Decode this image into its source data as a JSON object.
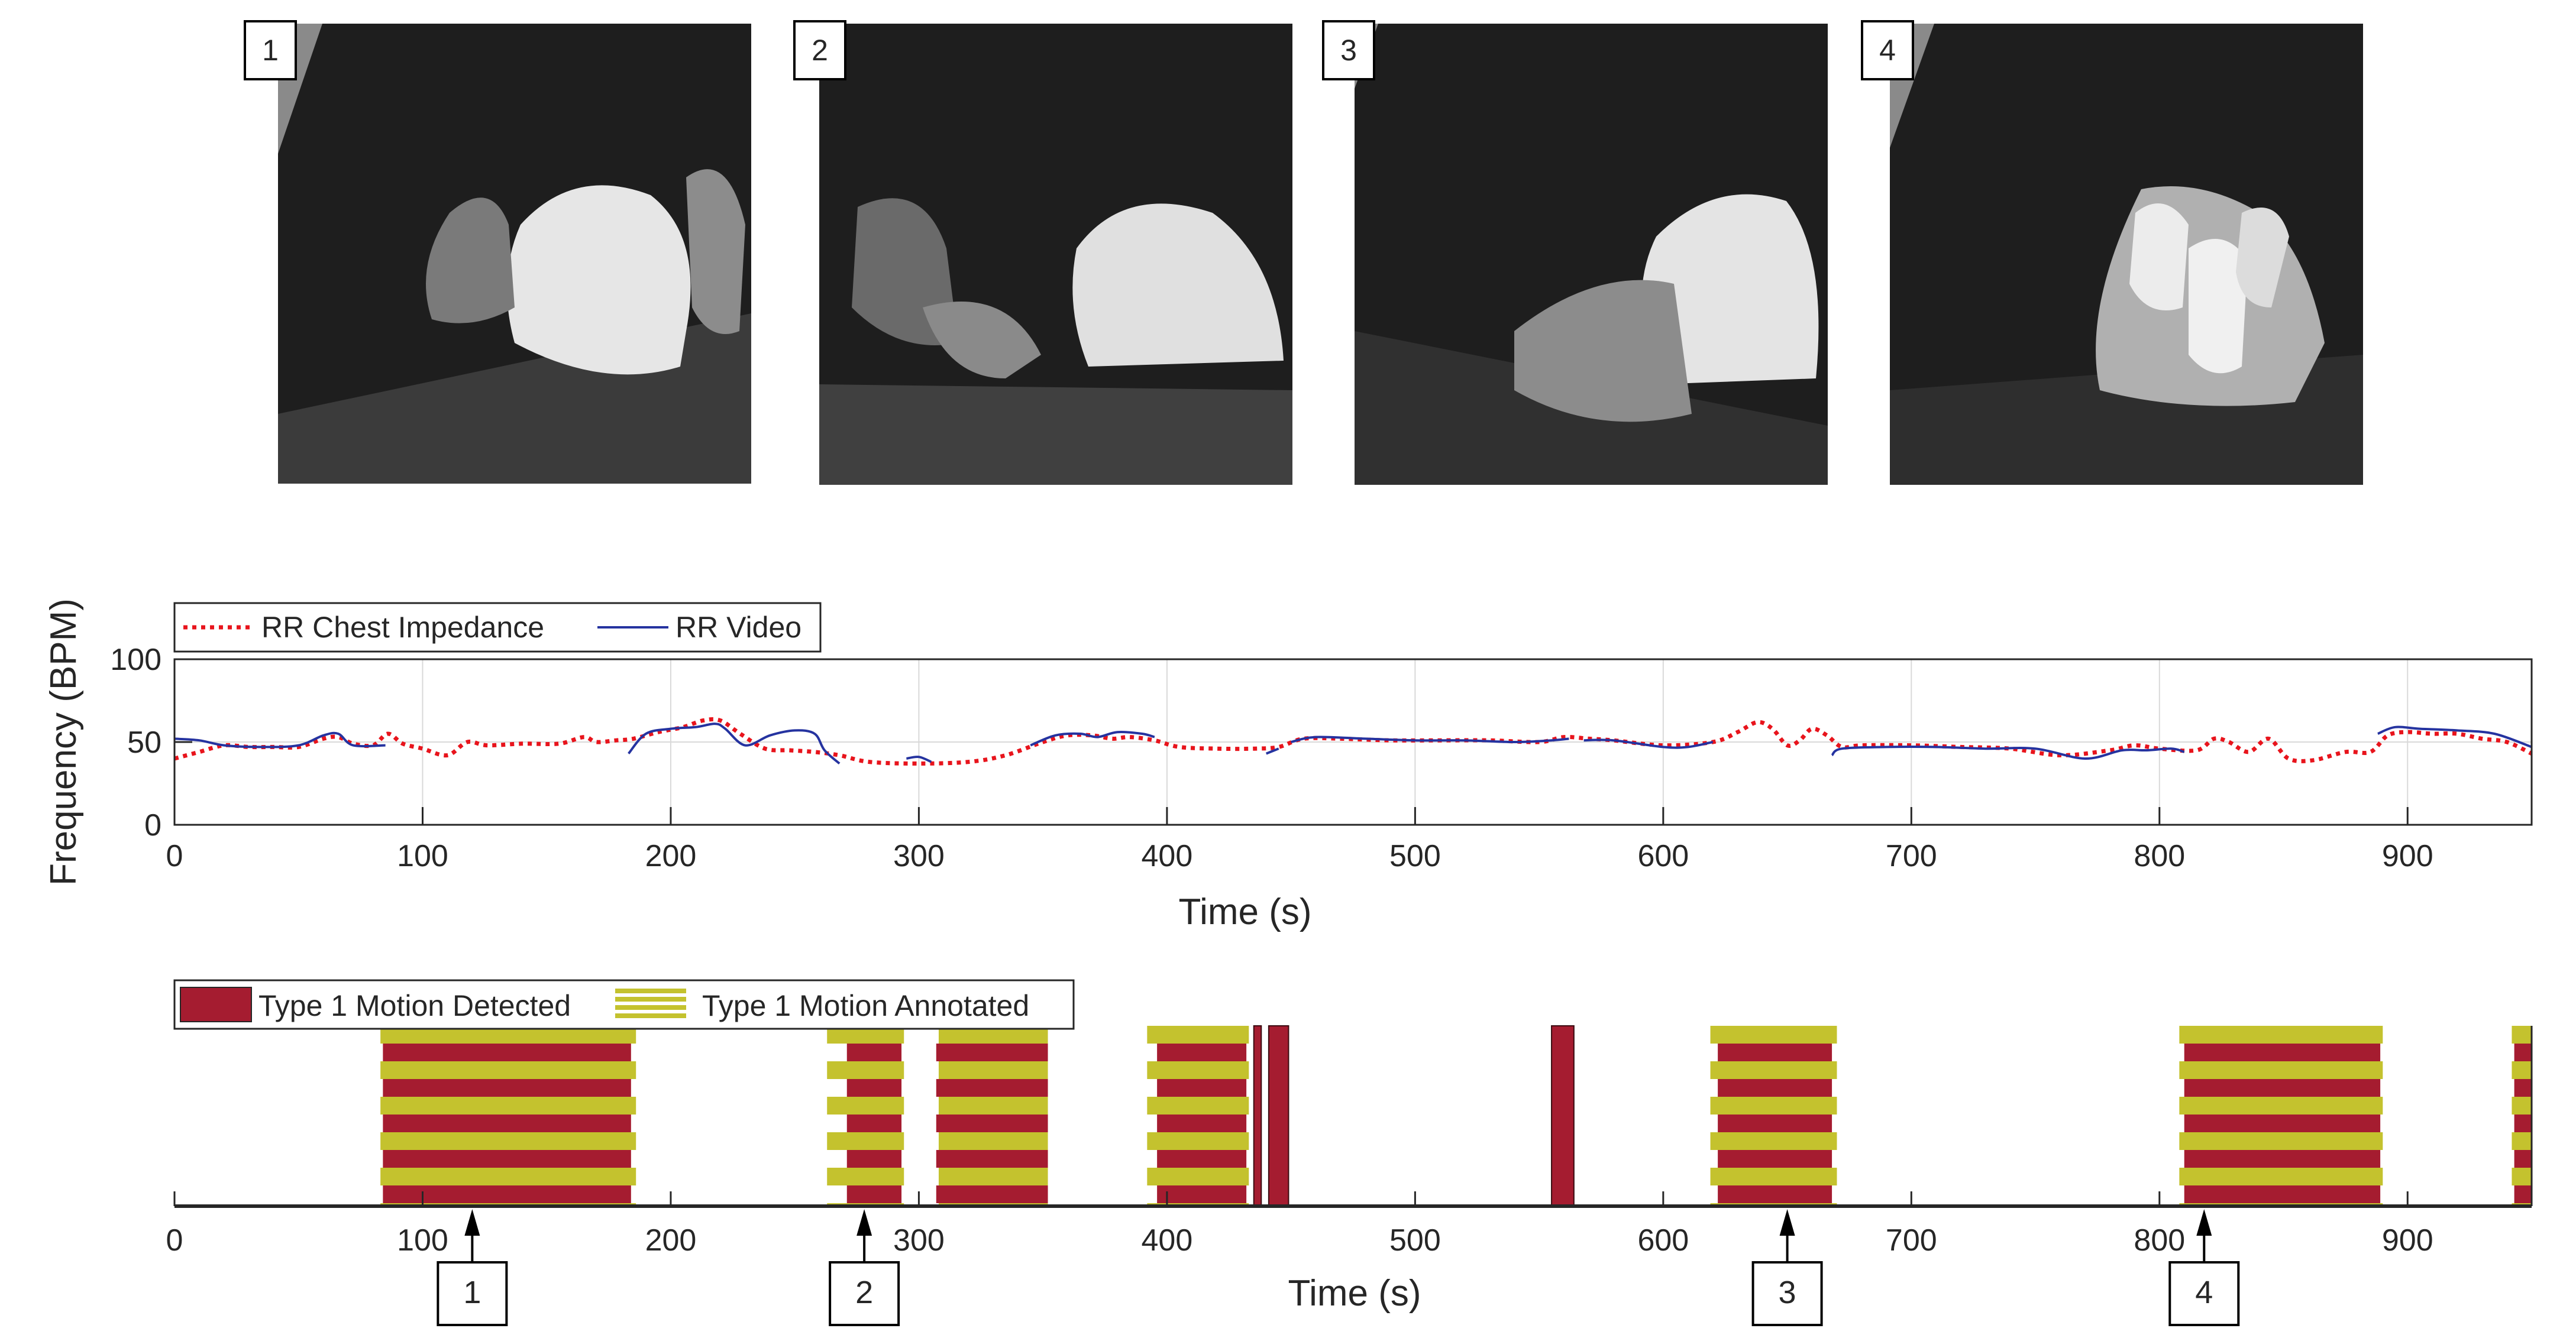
{
  "panels": [
    {
      "label": "1",
      "time": 120
    },
    {
      "label": "2",
      "time": 278
    },
    {
      "label": "3",
      "time": 650
    },
    {
      "label": "4",
      "time": 818
    }
  ],
  "colors": {
    "chest": "#e8141c",
    "video": "#2533a0",
    "detected": "#a51c30",
    "annotated": "#c4c22e",
    "axis": "#262626",
    "grid": "#d9d9d9"
  },
  "chart_data": [
    {
      "type": "line",
      "ylabel": "Frequency (BPM)",
      "xlabel": "Time (s)",
      "xlim": [
        0,
        950
      ],
      "ylim": [
        0,
        100
      ],
      "xticks": [
        0,
        100,
        200,
        300,
        400,
        500,
        600,
        700,
        800,
        900
      ],
      "yticks": [
        0,
        50,
        100
      ],
      "grid": true,
      "legend": {
        "position": "top-left",
        "entries": [
          "RR Chest Impedance",
          "RR Video"
        ]
      },
      "series": [
        {
          "name": "RR Chest Impedance",
          "style": "dotted",
          "x": [
            0,
            10,
            20,
            30,
            40,
            50,
            60,
            66,
            72,
            80,
            86,
            92,
            100,
            110,
            118,
            126,
            140,
            155,
            165,
            170,
            178,
            185,
            195,
            205,
            213,
            220,
            228,
            238,
            248,
            258,
            268,
            280,
            300,
            320,
            335,
            350,
            360,
            370,
            378,
            385,
            395,
            405,
            420,
            435,
            445,
            455,
            470,
            490,
            510,
            530,
            550,
            560,
            570,
            580,
            600,
            620,
            630,
            638,
            644,
            650,
            655,
            660,
            666,
            672,
            680,
            700,
            720,
            740,
            760,
            780,
            790,
            800,
            815,
            822,
            828,
            836,
            844,
            852,
            862,
            875,
            885,
            892,
            900,
            910,
            920,
            930,
            940,
            950
          ],
          "y": [
            40,
            44,
            48,
            47,
            47,
            47,
            52,
            53,
            49,
            48,
            55,
            49,
            46,
            42,
            50,
            48,
            49,
            49,
            53,
            50,
            51,
            52,
            56,
            59,
            63,
            63,
            55,
            46,
            45,
            44,
            42,
            38,
            37,
            38,
            42,
            50,
            54,
            54,
            52,
            53,
            51,
            47,
            46,
            46,
            47,
            52,
            52,
            51,
            51,
            51,
            50,
            53,
            52,
            51,
            48,
            50,
            56,
            62,
            58,
            48,
            51,
            58,
            54,
            47,
            48,
            48,
            47,
            46,
            42,
            45,
            48,
            46,
            45,
            52,
            50,
            44,
            52,
            40,
            39,
            44,
            44,
            54,
            56,
            55,
            55,
            52,
            50,
            43
          ]
        },
        {
          "name": "RR Video",
          "style": "solid",
          "segments": [
            {
              "x": [
                0,
                10,
                20,
                35,
                50,
                60,
                66,
                72,
                85
              ],
              "y": [
                52,
                51,
                48,
                47,
                48,
                54,
                55,
                48,
                48
              ]
            },
            {
              "x": [
                183,
                190,
                200,
                210,
                218,
                222,
                230,
                240,
                250,
                258,
                262,
                268
              ],
              "y": [
                43,
                55,
                58,
                59,
                61,
                58,
                48,
                54,
                57,
                55,
                45,
                37
              ]
            },
            {
              "x": [
                295,
                300,
                305
              ],
              "y": [
                40,
                41,
                38
              ]
            },
            {
              "x": [
                345,
                355,
                365,
                372,
                380,
                390,
                395
              ],
              "y": [
                48,
                54,
                55,
                53,
                56,
                55,
                53
              ]
            },
            {
              "x": [
                440,
                445
              ],
              "y": [
                43,
                46
              ]
            },
            {
              "x": [
                450,
                460,
                480,
                500,
                520,
                540,
                555,
                562
              ],
              "y": [
                50,
                53,
                52,
                51,
                51,
                50,
                51,
                52
              ]
            },
            {
              "x": [
                568,
                580,
                600,
                610,
                620
              ],
              "y": [
                51,
                51,
                47,
                47,
                50
              ]
            },
            {
              "x": [
                668,
                672,
                690,
                710,
                730,
                750,
                770,
                785,
                795,
                805,
                810
              ],
              "y": [
                42,
                46,
                47,
                47,
                46,
                46,
                40,
                45,
                45,
                46,
                44
              ]
            },
            {
              "x": [
                888,
                895,
                905,
                920,
                935,
                950
              ],
              "y": [
                55,
                59,
                58,
                57,
                55,
                47
              ]
            }
          ]
        }
      ]
    },
    {
      "type": "bar",
      "xlabel": "Time (s)",
      "xlim": [
        0,
        950
      ],
      "xticks": [
        0,
        100,
        200,
        300,
        400,
        500,
        600,
        700,
        800,
        900
      ],
      "grid": false,
      "legend": {
        "position": "top-left",
        "entries": [
          "Type 1 Motion Detected",
          "Type 1 Motion Annotated"
        ]
      },
      "series": [
        {
          "name": "Type 1 Motion Detected",
          "intervals": [
            [
              84,
              184
            ],
            [
              271,
              293
            ],
            [
              307,
              352
            ],
            [
              396,
              432
            ],
            [
              435,
              438
            ],
            [
              441,
              449
            ],
            [
              555,
              564
            ],
            [
              622,
              668
            ],
            [
              810,
              889
            ],
            [
              943,
              950
            ]
          ]
        },
        {
          "name": "Type 1 Motion Annotated",
          "intervals": [
            [
              83,
              186
            ],
            [
              263,
              294
            ],
            [
              308,
              352
            ],
            [
              392,
              433
            ],
            [
              619,
              670
            ],
            [
              808,
              890
            ],
            [
              942,
              950
            ]
          ]
        }
      ],
      "markers": [
        "1",
        "2",
        "3",
        "4"
      ]
    }
  ]
}
